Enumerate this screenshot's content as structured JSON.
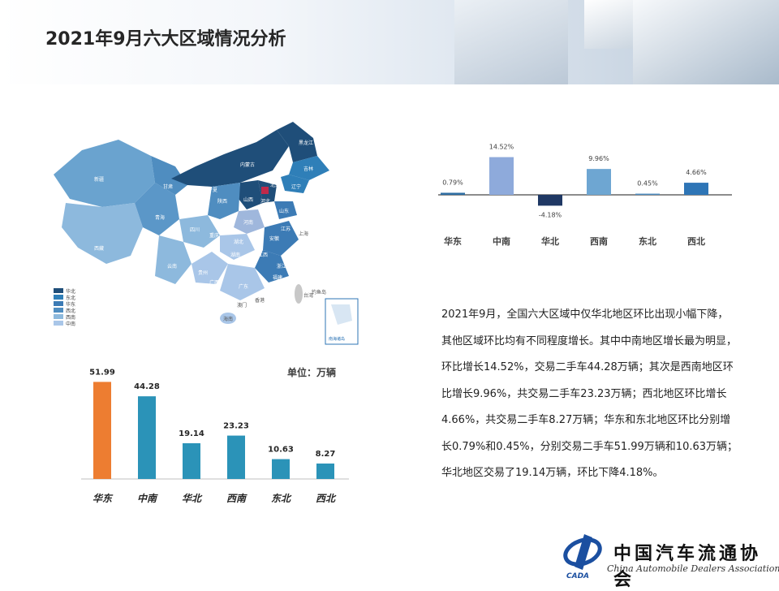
{
  "title": "2021年9月六大区域情况分析",
  "map_legend": [
    "华北",
    "东北",
    "华东",
    "西北",
    "西南",
    "中南"
  ],
  "map_labels": [
    "新疆",
    "西藏",
    "青海",
    "甘肃",
    "内蒙古",
    "黑龙江",
    "吉林",
    "辽宁",
    "北京",
    "河北",
    "山西",
    "山东",
    "陕西",
    "宁夏",
    "河南",
    "江苏",
    "安徽",
    "湖北",
    "四川",
    "重庆",
    "湖南",
    "江西",
    "浙江",
    "上海",
    "贵州",
    "云南",
    "广西",
    "广东",
    "福建",
    "台湾",
    "海南",
    "香港",
    "澳门",
    "钓鱼岛",
    "南海诸岛"
  ],
  "unit_label": "单位：万辆",
  "chart_data": [
    {
      "type": "bar",
      "categories": [
        "华东",
        "中南",
        "华北",
        "西南",
        "东北",
        "西北"
      ],
      "values": [
        0.79,
        14.52,
        -4.18,
        9.96,
        0.45,
        4.66
      ],
      "value_labels": [
        "0.79%",
        "14.52%",
        "-4.18%",
        "9.96%",
        "0.45%",
        "4.66%"
      ],
      "colors": [
        "#2f6ea3",
        "#8eaadb",
        "#1f3864",
        "#6ea6d2",
        "#4f8dc0",
        "#2e75b6"
      ]
    },
    {
      "type": "bar",
      "categories": [
        "华东",
        "中南",
        "华北",
        "西南",
        "东北",
        "西北"
      ],
      "values": [
        51.99,
        44.28,
        19.14,
        23.23,
        10.63,
        8.27
      ],
      "value_labels": [
        "51.99",
        "44.28",
        "19.14",
        "23.23",
        "10.63",
        "8.27"
      ],
      "colors": [
        "#ed7d31",
        "#2b93b8",
        "#2b93b8",
        "#2b93b8",
        "#2b93b8",
        "#2b93b8"
      ]
    }
  ],
  "paragraph": [
    "2021年9月，全国六大区域中仅华北地区环比出现小幅下降，",
    "其他区域环比均有不同程度增长。其中中南地区增长最为明显，",
    "环比增长14.52%，交易二手车44.28万辆；其次是西南地区环",
    "比增长9.96%，共交易二手车23.23万辆；西北地区环比增长",
    "4.66%，共交易二手车8.27万辆；华东和东北地区环比分别增",
    "长0.79%和0.45%，分别交易二手车51.99万辆和10.63万辆；",
    "华北地区交易了19.14万辆，环比下降4.18%。"
  ],
  "logo": {
    "cn": "中国汽车流通协会",
    "en": "China Automobile Dealers Association",
    "mark": "CADA"
  }
}
